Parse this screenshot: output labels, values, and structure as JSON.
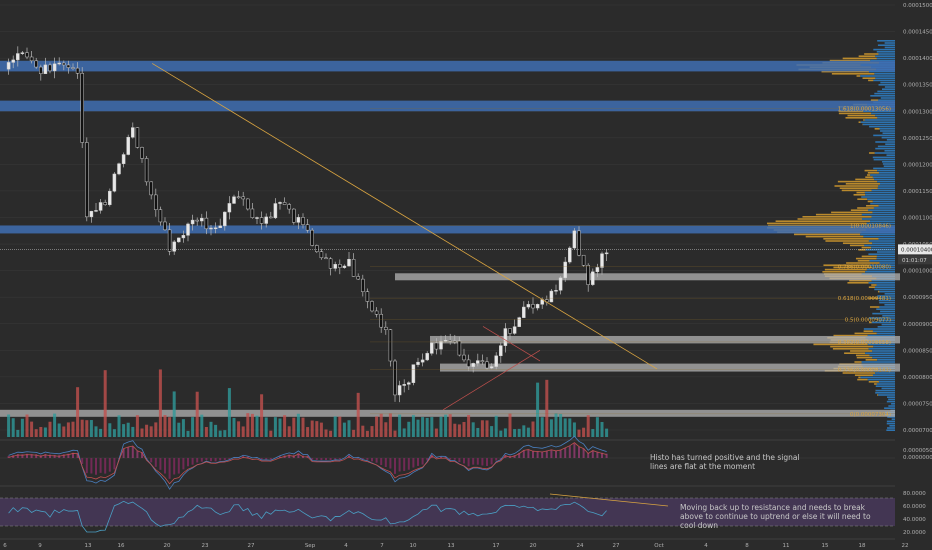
{
  "chart_data": {
    "type": "candlestick",
    "title": "",
    "symbol_hint": "",
    "price_axis": {
      "ticks": [
        "0.00015000",
        "0.00014500",
        "0.00014000",
        "0.00013500",
        "0.00013000",
        "0.00012500",
        "0.00012000",
        "0.00011500",
        "0.00011000",
        "0.00010500",
        "0.00010000",
        "0.00009500",
        "0.00009000",
        "0.00008500",
        "0.00008000",
        "0.00007500",
        "0.00007000"
      ],
      "range": [
        6.9e-05,
        0.000151
      ],
      "current_price": "0.00010400",
      "countdown": "01:01:07"
    },
    "x_axis": {
      "ticks": [
        "6",
        "9",
        "13",
        "16",
        "20",
        "23",
        "27",
        "Sep",
        "4",
        "7",
        "10",
        "13",
        "17",
        "20",
        "24",
        "27",
        "Oct",
        "4",
        "8",
        "11",
        "15",
        "18",
        "22"
      ]
    },
    "horizontal_zones": [
      {
        "name": "resistance-top",
        "low": 0.0001375,
        "high": 0.0001395,
        "color": "#3f6fb3"
      },
      {
        "name": "resistance-2",
        "low": 0.00013,
        "high": 0.000132,
        "color": "#3f6fb3"
      },
      {
        "name": "resistance-current",
        "low": 0.000107,
        "high": 0.0001085,
        "color": "#3f6fb3"
      },
      {
        "name": "support-786",
        "low": 9.85e-05,
        "high": 9.95e-05,
        "color": "#b4b4b4"
      },
      {
        "name": "support-382",
        "low": 8.63e-05,
        "high": 8.77e-05,
        "color": "#b4b4b4"
      },
      {
        "name": "support-236",
        "low": 8.1e-05,
        "high": 8.25e-05,
        "color": "#b4b4b4"
      },
      {
        "name": "support-0",
        "low": 7.25e-05,
        "high": 7.38e-05,
        "color": "#b4b4b4"
      }
    ],
    "fib_levels": [
      {
        "label": "1.618(0.00013056)",
        "value": 0.00013056
      },
      {
        "label": "1(0.00010846)",
        "value": 0.00010846
      },
      {
        "label": "0.786(0.00010080)",
        "value": 0.0001008
      },
      {
        "label": "0.618(0.00009481)",
        "value": 9.481e-05
      },
      {
        "label": "0.5(0.00009077)",
        "value": 9.077e-05
      },
      {
        "label": "0.382(0.00008658)",
        "value": 8.658e-05
      },
      {
        "label": "0.236(0.00008141)",
        "value": 8.141e-05
      },
      {
        "label": "0(0.00007304)",
        "value": 7.304e-05
      }
    ],
    "current_price_value": 0.000104,
    "anchors": [
      {
        "i": 0,
        "p": 0.000139
      },
      {
        "i": 4,
        "p": 0.000142
      },
      {
        "i": 8,
        "p": 0.000137
      },
      {
        "i": 12,
        "p": 0.00014
      },
      {
        "i": 16,
        "p": 0.000138
      },
      {
        "i": 18,
        "p": 0.000111
      },
      {
        "i": 22,
        "p": 0.0001125
      },
      {
        "i": 28,
        "p": 0.000127
      },
      {
        "i": 32,
        "p": 0.000114
      },
      {
        "i": 36,
        "p": 0.0001045
      },
      {
        "i": 42,
        "p": 0.00011
      },
      {
        "i": 46,
        "p": 0.0001075
      },
      {
        "i": 50,
        "p": 0.000115
      },
      {
        "i": 56,
        "p": 0.000109
      },
      {
        "i": 60,
        "p": 0.000113
      },
      {
        "i": 65,
        "p": 0.000108
      },
      {
        "i": 68,
        "p": 0.000104
      },
      {
        "i": 71,
        "p": 0.0001
      },
      {
        "i": 75,
        "p": 0.0001015
      },
      {
        "i": 79,
        "p": 9.4e-05
      },
      {
        "i": 83,
        "p": 8.9e-05
      },
      {
        "i": 85,
        "p": 7.75e-05
      },
      {
        "i": 88,
        "p": 8e-05
      },
      {
        "i": 92,
        "p": 8.5e-05
      },
      {
        "i": 97,
        "p": 8.7e-05
      },
      {
        "i": 102,
        "p": 8.2e-05
      },
      {
        "i": 106,
        "p": 8.3e-05
      },
      {
        "i": 109,
        "p": 8.8e-05
      },
      {
        "i": 113,
        "p": 9.3e-05
      },
      {
        "i": 118,
        "p": 9.5e-05
      },
      {
        "i": 121,
        "p": 9.85e-05
      },
      {
        "i": 124,
        "p": 0.0001065
      },
      {
        "i": 127,
        "p": 9.7e-05
      },
      {
        "i": 130,
        "p": 0.000104
      }
    ],
    "trendline": {
      "from": {
        "i": 17,
        "p": 0.000139
      },
      "to": {
        "i": 131,
        "p": 8.15e-05
      },
      "color": "#d9a441"
    },
    "macd_axis": {
      "ticks": [
        "0.0000050",
        "0.0000000"
      ]
    },
    "rsi_axis": {
      "ticks": [
        "80.0000",
        "60.0000",
        "40.0000",
        "20.0000"
      ],
      "upper": 70,
      "lower": 30
    }
  },
  "annotations": {
    "histo": "Histo has turned positive and the signal lines are flat at the moment",
    "rsi": "Moving back up to resistance and needs to break above to continue to uptrend or else it will need to cool down"
  },
  "colors": {
    "bg": "#2b2b2b",
    "grid": "#3a3a3a",
    "candle": "#e8e8e8",
    "up_volume": "#2f9a9a",
    "down_volume": "#c0504d",
    "zone_blue": "#3f6fb3",
    "zone_grey": "#b4b4b4",
    "fib_text": "#d9a441",
    "vp_orange": "#d39b2e",
    "vp_blue": "#2e7bbf",
    "rsi_band": "#4a3a5e",
    "rsi_line": "#4a9fc4",
    "macd_line": "#4a80c0",
    "signal_line": "#c05050"
  }
}
